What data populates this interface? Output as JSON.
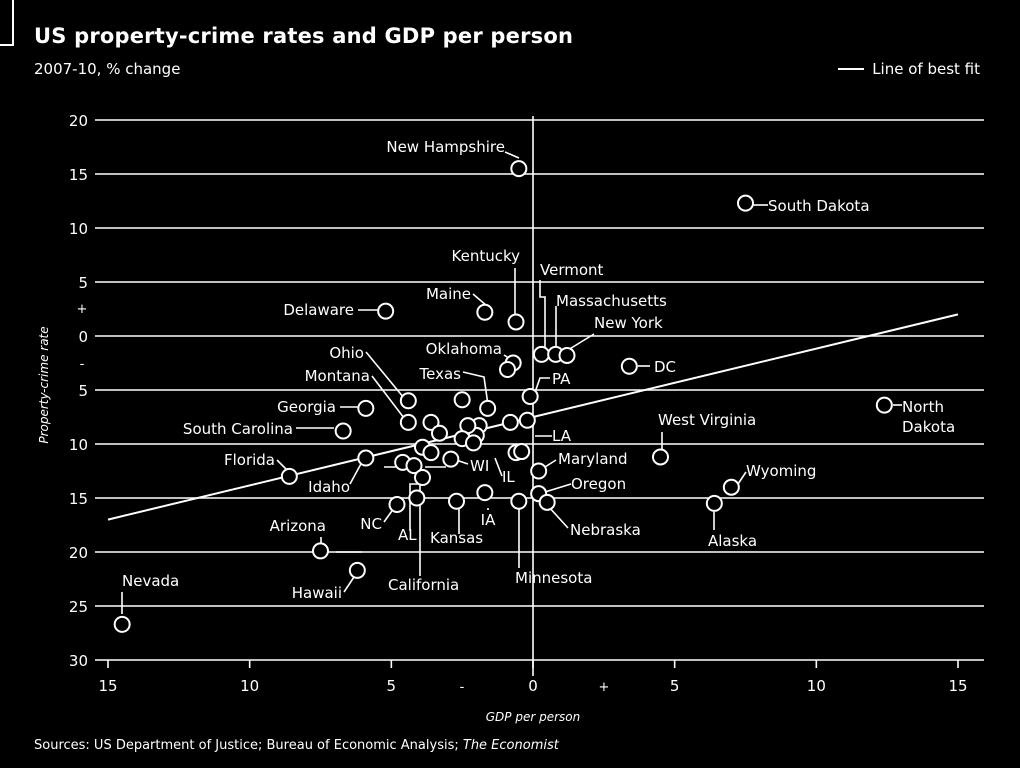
{
  "title": "US property-crime rates and GDP per person",
  "subtitle": "2007-10, % change",
  "legend": {
    "line_label": "Line of best fit",
    "placement": "top-right"
  },
  "source": {
    "prefix": "Sources: US Department of Justice; Bureau of Economic Analysis;",
    "italic": "The Economist"
  },
  "chart_data": {
    "type": "scatter",
    "title": "US property-crime rates and GDP per person",
    "subtitle": "2007-10, % change",
    "xlabel": "GDP per person",
    "ylabel": "Property-crime rate",
    "xlim": [
      -15,
      15
    ],
    "ylim": [
      -30,
      20
    ],
    "x_ticks": [
      -15,
      -10,
      -5,
      0,
      5,
      10,
      15
    ],
    "x_tick_labels": [
      "15",
      "10",
      "5",
      "0",
      "5",
      "10",
      "15"
    ],
    "y_ticks": [
      20,
      15,
      10,
      5,
      0,
      -5,
      -10,
      -15,
      -20,
      -25,
      -30
    ],
    "y_tick_labels": [
      "20",
      "15",
      "10",
      "5",
      "0",
      "5",
      "10",
      "15",
      "20",
      "25",
      "30"
    ],
    "sign_labels": {
      "plus": "+",
      "minus": "-"
    },
    "grid": "horizontal",
    "best_fit": {
      "x": [
        -15,
        15
      ],
      "y": [
        -17,
        2
      ]
    },
    "points": [
      {
        "label": "New Hampshire",
        "x": -0.5,
        "y": 15.5
      },
      {
        "label": "South Dakota",
        "x": 7.5,
        "y": 12.3
      },
      {
        "label": "Kentucky",
        "x": -0.6,
        "y": 1.3
      },
      {
        "label": "Vermont",
        "x": 0.3,
        "y": -1.7
      },
      {
        "label": "Maine",
        "x": -1.7,
        "y": 2.2
      },
      {
        "label": "Massachusetts",
        "x": 0.8,
        "y": -1.7
      },
      {
        "label": "New York",
        "x": 1.2,
        "y": -1.8
      },
      {
        "label": "Delaware",
        "x": -5.2,
        "y": 2.3
      },
      {
        "label": "Oklahoma",
        "x": -0.7,
        "y": -2.5
      },
      {
        "label": "",
        "x": -0.9,
        "y": -3.1
      },
      {
        "label": "DC",
        "x": 3.4,
        "y": -2.8
      },
      {
        "label": "Ohio",
        "x": -4.4,
        "y": -6.0
      },
      {
        "label": "Montana",
        "x": -4.4,
        "y": -8.0
      },
      {
        "label": "Texas",
        "x": -2.5,
        "y": -5.9
      },
      {
        "label": "PA",
        "x": -0.1,
        "y": -5.6
      },
      {
        "label": "Georgia",
        "x": -5.9,
        "y": -6.7
      },
      {
        "label": "North Dakota",
        "x": 12.4,
        "y": -6.4
      },
      {
        "label": "West Virginia",
        "x": 4.5,
        "y": -11.2
      },
      {
        "label": "South Carolina",
        "x": -6.7,
        "y": -8.8
      },
      {
        "label": "LA",
        "x": -0.2,
        "y": -7.8
      },
      {
        "label": "",
        "x": -0.8,
        "y": -8.0
      },
      {
        "label": "",
        "x": -1.6,
        "y": -6.7
      },
      {
        "label": "",
        "x": -1.9,
        "y": -8.3
      },
      {
        "label": "",
        "x": -2.0,
        "y": -9.2
      },
      {
        "label": "",
        "x": -2.3,
        "y": -8.3
      },
      {
        "label": "",
        "x": -3.6,
        "y": -8.0
      },
      {
        "label": "",
        "x": -3.3,
        "y": -9.0
      },
      {
        "label": "",
        "x": -2.5,
        "y": -9.5
      },
      {
        "label": "",
        "x": -2.1,
        "y": -9.9
      },
      {
        "label": "",
        "x": -3.9,
        "y": -10.3
      },
      {
        "label": "",
        "x": -3.6,
        "y": -10.8
      },
      {
        "label": "Maryland",
        "x": 0.2,
        "y": -12.5
      },
      {
        "label": "Florida",
        "x": -8.6,
        "y": -13.0
      },
      {
        "label": "Idaho",
        "x": -5.9,
        "y": -11.3
      },
      {
        "label": "WI",
        "x": -2.9,
        "y": -11.4
      },
      {
        "label": "IL",
        "x": -0.6,
        "y": -10.8
      },
      {
        "label": "",
        "x": -0.4,
        "y": -10.7
      },
      {
        "label": "",
        "x": -4.6,
        "y": -11.7
      },
      {
        "label": "",
        "x": -4.2,
        "y": -12.0
      },
      {
        "label": "Oregon",
        "x": 0.2,
        "y": -14.6
      },
      {
        "label": "Wyoming",
        "x": 7.0,
        "y": -14.0
      },
      {
        "label": "Alaska",
        "x": 6.4,
        "y": -15.5
      },
      {
        "label": "NC",
        "x": -4.8,
        "y": -15.6
      },
      {
        "label": "AL",
        "x": -3.9,
        "y": -13.1
      },
      {
        "label": "Kansas",
        "x": -2.7,
        "y": -15.3
      },
      {
        "label": "IA",
        "x": -1.7,
        "y": -14.5
      },
      {
        "label": "Minnesota",
        "x": -0.5,
        "y": -15.3
      },
      {
        "label": "Nebraska",
        "x": 0.5,
        "y": -15.4
      },
      {
        "label": "Arizona",
        "x": -7.5,
        "y": -19.9
      },
      {
        "label": "California",
        "x": -4.1,
        "y": -15.0
      },
      {
        "label": "Hawaii",
        "x": -6.2,
        "y": -21.7
      },
      {
        "label": "Nevada",
        "x": -14.5,
        "y": -26.7
      }
    ]
  }
}
